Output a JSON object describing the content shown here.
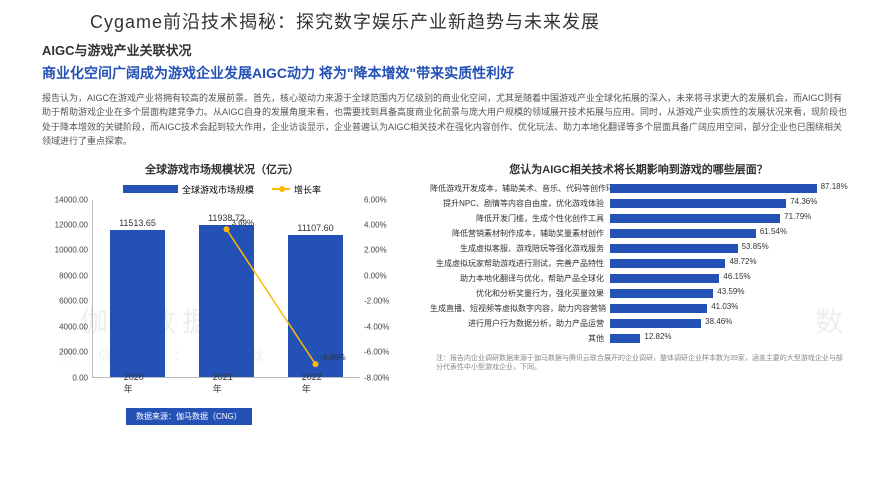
{
  "page_title": "Cygame前沿技术揭秘：探究数字娱乐产业新趋势与未来发展",
  "section_title": "AIGC与游戏产业关联状况",
  "section_subtitle": "商业化空间广阔成为游戏企业发展AIGC动力 将为\"降本增效\"带来实质性利好",
  "body_text": "报告认为，AIGC在游戏产业将拥有较高的发展前景。首先，核心驱动力来源于全球范围内万亿级别的商业化空间，尤其是随着中国游戏产业全球化拓展的深入，未来将寻求更大的发展机会，而AIGC则有助于帮助游戏企业在多个层面构建竞争力。从AIGC自身的发展角度来看，也需要找到具备高度商业化前景与庞大用户规模的领域展开技术拓展与应用。同时，从游戏产业实质性的发展状况来看，现阶段也处于降本增效的关键阶段，而AIGC技术会起到较大作用，企业访谈显示，企业普遍认为AIGC相关技术在强化内容创作、优化玩法、助力本地化翻译等多个层面具备广阔应用空间，部分企业也已围绕相关领域进行了重点探索。",
  "left_chart": {
    "title": "全球游戏市场规模状况（亿元）",
    "legend_bar": "全球游戏市场规模",
    "legend_line": "增长率",
    "y_left": {
      "min": 0,
      "max": 14000,
      "step": 2000,
      "ticks": [
        "0.00",
        "2000.00",
        "4000.00",
        "6000.00",
        "8000.00",
        "10000.00",
        "12000.00",
        "14000.00"
      ]
    },
    "y_right": {
      "min": -8,
      "max": 6,
      "step": 2,
      "ticks": [
        "-8.00%",
        "-6.00%",
        "-4.00%",
        "-2.00%",
        "0.00%",
        "2.00%",
        "4.00%",
        "6.00%"
      ]
    },
    "bars": [
      {
        "label": "2020年",
        "value": 11513.65,
        "display": "11513.65"
      },
      {
        "label": "2021年",
        "value": 11938.72,
        "display": "11938.72",
        "growth": 3.69,
        "growth_display": "3.69%"
      },
      {
        "label": "2022年",
        "value": 11107.6,
        "display": "11107.60",
        "growth": -6.96,
        "growth_display": "-6.96%"
      }
    ],
    "bar_color": "#2451b5",
    "line_color": "#ffb800",
    "source": "数据来源：伽马数据（CNG）"
  },
  "right_chart": {
    "title": "您认为AIGC相关技术将长期影响到游戏的哪些层面？",
    "max": 100,
    "bar_color": "#2451b5",
    "rows": [
      {
        "label": "降低游戏开发成本，辅助美术、音乐、代码等创作环节",
        "value": 87.18,
        "display": "87.18%"
      },
      {
        "label": "提升NPC、剧情等内容自由度，优化游戏体验",
        "value": 74.36,
        "display": "74.36%"
      },
      {
        "label": "降低开发门槛，生成个性化创作工具",
        "value": 71.79,
        "display": "71.79%"
      },
      {
        "label": "降低营销素材制作成本，辅助奖量素材创作",
        "value": 61.54,
        "display": "61.54%"
      },
      {
        "label": "生成虚拟客服、游戏陪玩等强化游戏服务",
        "value": 53.85,
        "display": "53.85%"
      },
      {
        "label": "生成虚拟玩家帮助游戏进行测试，完善产品特性",
        "value": 48.72,
        "display": "48.72%"
      },
      {
        "label": "助力本地化翻译与优化，帮助产品全球化",
        "value": 46.15,
        "display": "46.15%"
      },
      {
        "label": "优化和分析奖量行为，强化买量效果",
        "value": 43.59,
        "display": "43.59%"
      },
      {
        "label": "生成直播、短视频等虚拟数字内容，助力内容营销",
        "value": 41.03,
        "display": "41.03%"
      },
      {
        "label": "进行用户行为数据分析，助力产品运营",
        "value": 38.46,
        "display": "38.46%"
      },
      {
        "label": "其他",
        "value": 12.82,
        "display": "12.82%"
      }
    ],
    "footnote": "注：报告内企业调研数据来源于伽马数据与腾讯云联合展开的企业调研，整体调研企业样本数为39家，涵盖主要的大型游戏企业与部分代表性中小型游戏企业，下同。"
  },
  "watermarks": {
    "w1": "伽马数据",
    "w2": "数",
    "w3": "微 信 号 ： 游 戏 产"
  }
}
